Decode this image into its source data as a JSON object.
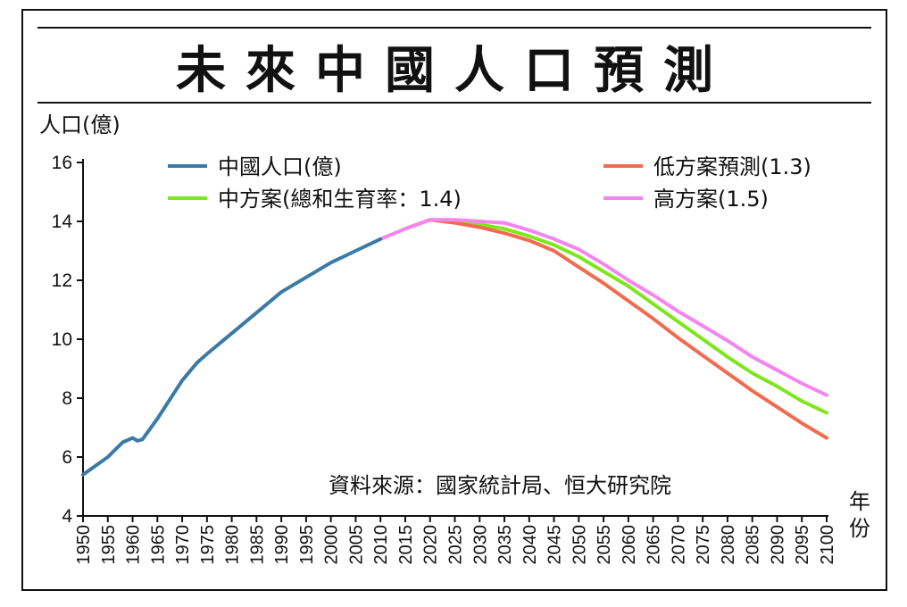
{
  "title": "未來中國人口預測",
  "chart_data": {
    "type": "line",
    "ylabel": "人口(億)",
    "xlabel": "年份",
    "ylim": [
      4,
      16
    ],
    "yticks": [
      4,
      6,
      8,
      10,
      12,
      14,
      16
    ],
    "xlim": [
      1950,
      2100
    ],
    "xticks": [
      "1950",
      "1955",
      "1960",
      "1965",
      "1970",
      "1975",
      "1980",
      "1985",
      "1990",
      "1995",
      "2000",
      "2005",
      "2010",
      "2015",
      "2020",
      "2025",
      "2030",
      "2035",
      "2040",
      "2045",
      "2050",
      "2055",
      "2060",
      "2065",
      "2070",
      "2075",
      "2080",
      "2085",
      "2090",
      "2095",
      "2100"
    ],
    "source": "資料來源：國家統計局、恒大研究院",
    "grid": false,
    "legend_placement": "top",
    "series": [
      {
        "name": "中國人口(億)",
        "color": "#3a7aa6",
        "x": [
          1950,
          1955,
          1958,
          1960,
          1961,
          1962,
          1965,
          1970,
          1973,
          1975,
          1980,
          1985,
          1990,
          1995,
          2000,
          2005,
          2010
        ],
        "y": [
          5.4,
          6.0,
          6.5,
          6.65,
          6.55,
          6.6,
          7.3,
          8.6,
          9.2,
          9.5,
          10.2,
          10.9,
          11.6,
          12.1,
          12.6,
          13.0,
          13.4
        ]
      },
      {
        "name": "中方案(總和生育率：1.4)",
        "color": "#7ee61c",
        "x": [
          2015,
          2020,
          2025,
          2030,
          2035,
          2040,
          2045,
          2050,
          2055,
          2060,
          2065,
          2070,
          2075,
          2080,
          2085,
          2090,
          2095,
          2100
        ],
        "y": [
          13.75,
          14.05,
          14.0,
          13.9,
          13.75,
          13.5,
          13.2,
          12.8,
          12.3,
          11.8,
          11.2,
          10.6,
          10.0,
          9.4,
          8.85,
          8.4,
          7.9,
          7.5
        ]
      },
      {
        "name": "低方案預測(1.3)",
        "color": "#f26b4f",
        "x": [
          2015,
          2020,
          2025,
          2030,
          2035,
          2040,
          2045,
          2050,
          2055,
          2060,
          2065,
          2070,
          2075,
          2080,
          2085,
          2090,
          2095,
          2100
        ],
        "y": [
          13.75,
          14.05,
          13.95,
          13.8,
          13.6,
          13.35,
          13.0,
          12.45,
          11.9,
          11.3,
          10.7,
          10.05,
          9.45,
          8.85,
          8.25,
          7.7,
          7.15,
          6.65
        ]
      },
      {
        "name": "高方案(1.5)",
        "color": "#f484f0",
        "x": [
          2010,
          2015,
          2020,
          2025,
          2030,
          2035,
          2040,
          2045,
          2050,
          2055,
          2060,
          2065,
          2070,
          2075,
          2080,
          2085,
          2090,
          2095,
          2100
        ],
        "y": [
          13.4,
          13.75,
          14.05,
          14.05,
          14.0,
          13.95,
          13.7,
          13.4,
          13.05,
          12.55,
          12.0,
          11.5,
          10.95,
          10.45,
          9.95,
          9.4,
          8.95,
          8.5,
          8.1
        ]
      }
    ]
  }
}
